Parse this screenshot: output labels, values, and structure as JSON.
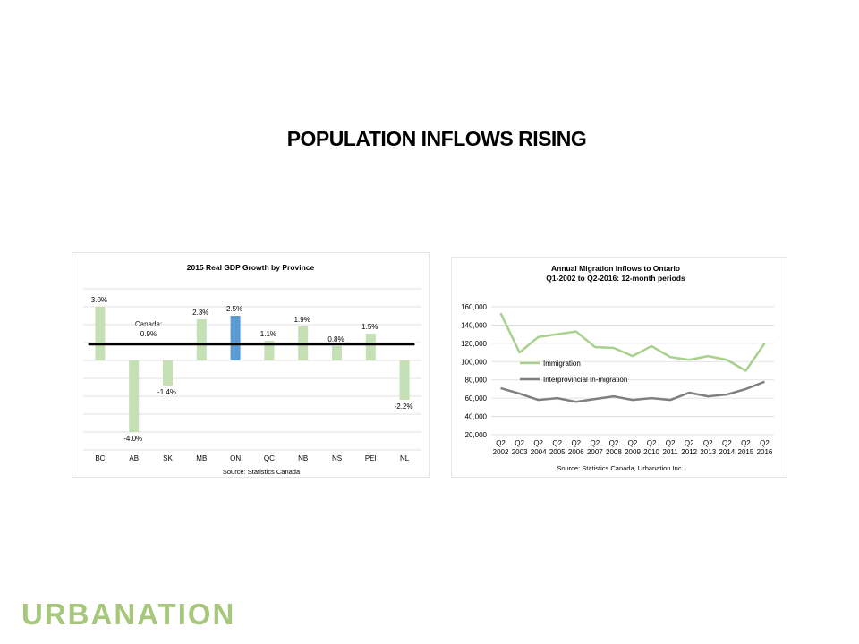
{
  "slide": {
    "title": "POPULATION INFLOWS RISING",
    "logo": "URBANATION"
  },
  "colors": {
    "bar_default": "#c5e0b4",
    "bar_highlight": "#5b9bd5",
    "immigration_line": "#a9d18e",
    "interprovincial_line": "#7f7f7f",
    "gridline": "#d9d9d9",
    "reference_line": "#000000",
    "logo": "#a6c77c"
  },
  "chart_data": [
    {
      "type": "bar",
      "title": "2015 Real GDP Growth by Province",
      "source": "Source: Statistics Canada",
      "categories": [
        "BC",
        "AB",
        "SK",
        "MB",
        "ON",
        "QC",
        "NB",
        "NS",
        "PEI",
        "NL"
      ],
      "values": [
        3.0,
        -4.0,
        -1.4,
        2.3,
        2.5,
        1.1,
        1.9,
        0.8,
        1.5,
        -2.2
      ],
      "value_labels": [
        "3.0%",
        "-4.0%",
        "-1.4%",
        "2.3%",
        "2.5%",
        "1.1%",
        "1.9%",
        "0.8%",
        "1.5%",
        "-2.2%"
      ],
      "highlight": "ON",
      "reference_value": 0.9,
      "reference_label_1": "Canada:",
      "reference_label_2": "0.9%",
      "ylim": [
        -5,
        4
      ],
      "grid": true
    },
    {
      "type": "line",
      "title_line1": "Annual Migration Inflows to Ontario",
      "title_line2": "Q1-2002 to Q2-2016: 12-month periods",
      "source": "Source: Statistics Canada, Urbanation Inc.",
      "x_top": [
        "Q2",
        "Q2",
        "Q2",
        "Q2",
        "Q2",
        "Q2",
        "Q2",
        "Q2",
        "Q2",
        "Q2",
        "Q2",
        "Q2",
        "Q2",
        "Q2",
        "Q2"
      ],
      "x_bottom": [
        "2002",
        "2003",
        "2004",
        "2005",
        "2006",
        "2007",
        "2008",
        "2009",
        "2010",
        "2011",
        "2012",
        "2013",
        "2014",
        "2015",
        "2016"
      ],
      "ylim": [
        20000,
        160000
      ],
      "yticks": [
        "160,000",
        "140,000",
        "120,000",
        "100,000",
        "80,000",
        "60,000",
        "40,000",
        "20,000"
      ],
      "ytick_values": [
        160000,
        140000,
        120000,
        100000,
        80000,
        60000,
        40000,
        20000
      ],
      "grid": true,
      "series": [
        {
          "name": "Immigration",
          "values": [
            153000,
            110000,
            127000,
            130000,
            133000,
            116000,
            115000,
            106000,
            117000,
            105000,
            102000,
            106000,
            102000,
            90000,
            120000
          ]
        },
        {
          "name": "Interprovincial In-migration",
          "values": [
            71000,
            65000,
            58000,
            60000,
            56000,
            59000,
            62000,
            58000,
            60000,
            58000,
            66000,
            62000,
            64000,
            70000,
            78000
          ]
        }
      ]
    }
  ]
}
